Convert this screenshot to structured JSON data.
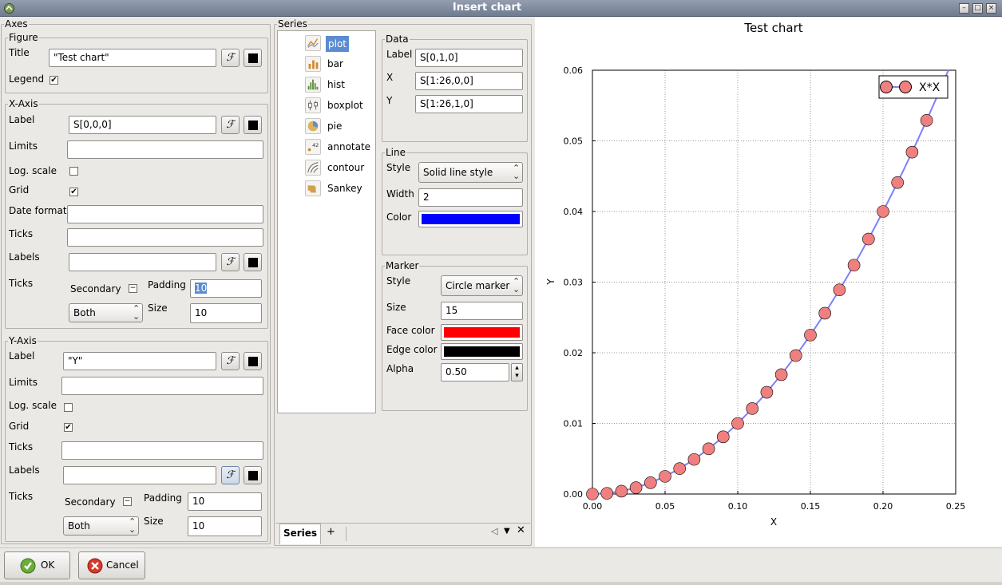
{
  "window": {
    "title": "Insert chart"
  },
  "axes_panel": {
    "title": "Axes",
    "figure": {
      "group": "Figure",
      "title_label": "Title",
      "title_value": "\"Test chart\"",
      "legend_label": "Legend",
      "legend_checked": true
    },
    "xaxis": {
      "group": "X-Axis",
      "label_label": "Label",
      "label_value": "S[0,0,0]",
      "limits_label": "Limits",
      "limits_value": "",
      "log_label": "Log. scale",
      "log_checked": false,
      "grid_label": "Grid",
      "grid_checked": true,
      "date_label": "Date format",
      "date_value": "",
      "ticks_label": "Ticks",
      "ticks_value": "",
      "labels_label": "Labels",
      "labels_value": "",
      "ticks2_label": "Ticks",
      "secondary_label": "Secondary",
      "padding_label": "Padding",
      "padding_value": "10",
      "which_value": "Both",
      "size_label": "Size",
      "size_value": "10"
    },
    "yaxis": {
      "group": "Y-Axis",
      "label_label": "Label",
      "label_value": "\"Y\"",
      "limits_label": "Limits",
      "limits_value": "",
      "log_label": "Log. scale",
      "log_checked": false,
      "grid_label": "Grid",
      "grid_checked": true,
      "ticks_label": "Ticks",
      "ticks_value": "",
      "labels_label": "Labels",
      "labels_value": "",
      "ticks2_label": "Ticks",
      "secondary_label": "Secondary",
      "padding_label": "Padding",
      "padding_value": "10",
      "which_value": "Both",
      "size_label": "Size",
      "size_value": "10"
    }
  },
  "series_panel": {
    "title": "Series",
    "types": [
      {
        "label": "plot",
        "icon": "line-chart-icon",
        "selected": true
      },
      {
        "label": "bar",
        "icon": "bar-chart-icon",
        "selected": false
      },
      {
        "label": "hist",
        "icon": "histogram-icon",
        "selected": false
      },
      {
        "label": "boxplot",
        "icon": "boxplot-icon",
        "selected": false
      },
      {
        "label": "pie",
        "icon": "pie-chart-icon",
        "selected": false
      },
      {
        "label": "annotate",
        "icon": "annotate-icon",
        "selected": false
      },
      {
        "label": "contour",
        "icon": "contour-icon",
        "selected": false
      },
      {
        "label": "Sankey",
        "icon": "sankey-icon",
        "selected": false
      }
    ],
    "data": {
      "group": "Data",
      "label_label": "Label",
      "label_value": "S[0,1,0]",
      "x_label": "X",
      "x_value": "S[1:26,0,0]",
      "y_label": "Y",
      "y_value": "S[1:26,1,0]"
    },
    "line": {
      "group": "Line",
      "style_label": "Style",
      "style_value": "Solid line style",
      "width_label": "Width",
      "width_value": "2",
      "color_label": "Color",
      "color": "#0000ff"
    },
    "marker": {
      "group": "Marker",
      "style_label": "Style",
      "style_value": "Circle marker",
      "size_label": "Size",
      "size_value": "15",
      "face_label": "Face color",
      "face_color": "#ff0000",
      "edge_label": "Edge color",
      "edge_color": "#000000",
      "alpha_label": "Alpha",
      "alpha_value": "0.50"
    },
    "tabs": [
      {
        "label": "Series",
        "active": true
      },
      {
        "label": "+",
        "active": false
      }
    ]
  },
  "buttons": {
    "ok": "OK",
    "cancel": "Cancel"
  },
  "chart_data": {
    "type": "line",
    "title": "Test chart",
    "xlabel": "X",
    "ylabel": "Y",
    "xlim": [
      0,
      0.25
    ],
    "ylim": [
      0,
      0.06
    ],
    "xticks": [
      "0.00",
      "0.05",
      "0.10",
      "0.15",
      "0.20",
      "0.25"
    ],
    "yticks": [
      "0.00",
      "0.01",
      "0.02",
      "0.03",
      "0.04",
      "0.05",
      "0.06"
    ],
    "grid": true,
    "legend": "top-right",
    "line_color": "#7f7fff",
    "marker_color": "#f08080",
    "series": [
      {
        "name": "X*X",
        "x": [
          0.0,
          0.01,
          0.02,
          0.03,
          0.04,
          0.05,
          0.06,
          0.07,
          0.08,
          0.09,
          0.1,
          0.11,
          0.12,
          0.13,
          0.14,
          0.15,
          0.16,
          0.17,
          0.18,
          0.19,
          0.2,
          0.21,
          0.22,
          0.23,
          0.24,
          0.25
        ],
        "y": [
          0.0,
          0.0001,
          0.0004,
          0.0009,
          0.0016,
          0.0025,
          0.0036,
          0.0049,
          0.0064,
          0.0081,
          0.01,
          0.0121,
          0.0144,
          0.0169,
          0.0196,
          0.0225,
          0.0256,
          0.0289,
          0.0324,
          0.0361,
          0.04,
          0.0441,
          0.0484,
          0.0529,
          0.0576,
          0.0625
        ]
      }
    ]
  }
}
